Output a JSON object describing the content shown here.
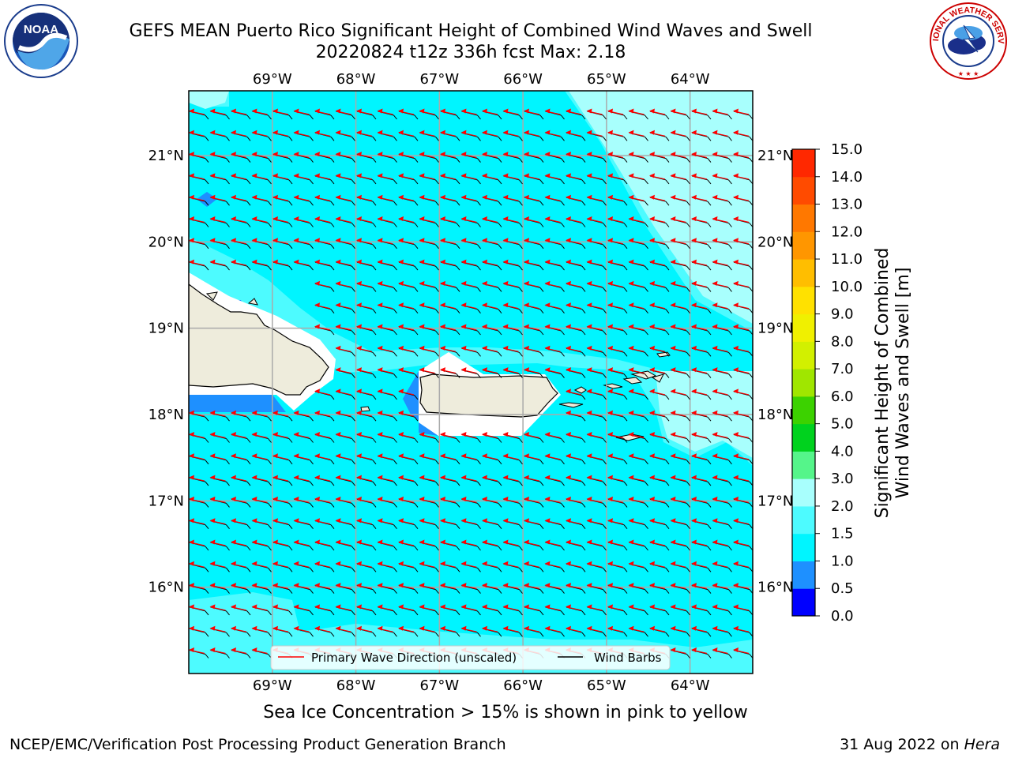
{
  "header": {
    "title_line1": "GEFS MEAN Puerto Rico Significant Height of Combined Wind Waves and Swell",
    "title_line2": "20220824 t12z 336h fcst   Max: 2.18"
  },
  "logos": {
    "left": {
      "icon": "noaa-logo",
      "text": "NOAA"
    },
    "right": {
      "icon": "nws-logo",
      "text": "NATIONAL WEATHER SERVICE"
    }
  },
  "chart_data": {
    "type": "heatmap",
    "title": "GEFS MEAN Puerto Rico Significant Height of Combined Wind Waves and Swell",
    "subtitle": "20220824 t12z 336h fcst   Max: 2.18",
    "x_ticks": [
      "69°W",
      "68°W",
      "67°W",
      "66°W",
      "65°W",
      "64°W"
    ],
    "x_tick_values": [
      -69,
      -68,
      -67,
      -66,
      -65,
      -64
    ],
    "y_ticks": [
      "16°N",
      "17°N",
      "18°N",
      "19°N",
      "20°N",
      "21°N"
    ],
    "y_tick_values": [
      16,
      17,
      18,
      19,
      20,
      21
    ],
    "xlim": [
      -70.0,
      -63.25
    ],
    "ylim": [
      15.0,
      21.75
    ],
    "grid": true,
    "max_value": 2.18,
    "colorbar": {
      "label": "Significant Height of Combined Wind Waves and Swell [m]",
      "label_lines": [
        "Significant Height of Combined",
        "Wind Waves and Swell [m]"
      ],
      "ticks": [
        "0.0",
        "0.5",
        "1.0",
        "1.5",
        "2.0",
        "3.0",
        "4.0",
        "5.0",
        "6.0",
        "7.0",
        "8.0",
        "9.0",
        "10.0",
        "11.0",
        "12.0",
        "13.0",
        "14.0",
        "15.0"
      ],
      "colors": [
        "#0000ff",
        "#1e90ff",
        "#00f5ff",
        "#4dfbff",
        "#a8fffd",
        "#55f58a",
        "#00d21e",
        "#3cd200",
        "#a0e600",
        "#d2f000",
        "#f0f000",
        "#ffe100",
        "#ffbe00",
        "#ff9600",
        "#ff7800",
        "#ff4b00",
        "#ff2800"
      ]
    },
    "legend": {
      "placement": "bottom-center",
      "entries": [
        {
          "label": "Primary Wave Direction (unscaled)",
          "color": "#ff0000"
        },
        {
          "label": "Wind Barbs",
          "color": "#000000"
        }
      ]
    },
    "field_summary": "Significant wave height mostly 1.0-1.5 m across region, 1.5-2.0 m patches east and southwest, 0.5-1.0 m pockets near coasts; wave direction from east-southeast with wind barbs from east"
  },
  "annotations": {
    "sea_ice_note": "Sea Ice Concentration > 15% is shown in pink to yellow"
  },
  "footer": {
    "left": "NCEP/EMC/Verification Post Processing Product Generation Branch",
    "right_prefix": "31 Aug 2022 on ",
    "right_host": "Hera"
  }
}
